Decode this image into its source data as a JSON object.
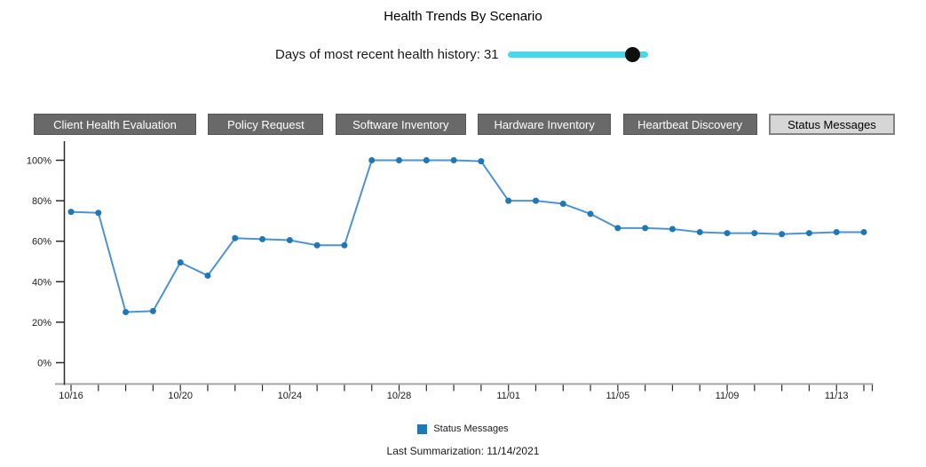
{
  "page": {
    "title": "Health Trends By Scenario",
    "background": "#ffffff"
  },
  "slider": {
    "label": "Days of most recent health history:",
    "value": "31",
    "fraction": 0.89,
    "track_color": "#48d8eb",
    "thumb_color": "#0f0f0f"
  },
  "scenario_tabs": [
    {
      "label": "Client Health Evaluation",
      "active": false
    },
    {
      "label": "Policy Request",
      "active": false
    },
    {
      "label": "Software Inventory",
      "active": false
    },
    {
      "label": "Hardware Inventory",
      "active": false
    },
    {
      "label": "Heartbeat Discovery",
      "active": false
    },
    {
      "label": "Status Messages",
      "active": true
    }
  ],
  "legend": {
    "label": "Status Messages",
    "color": "#1f77b4"
  },
  "footer": {
    "last_summarization": "Last Summarization: 11/14/2021"
  },
  "chart_data": {
    "type": "line",
    "title": "Health Trends By Scenario",
    "xlabel": "",
    "ylabel": "",
    "ylim": [
      0,
      100
    ],
    "grid": false,
    "legend_position": "bottom",
    "x": [
      "10/16",
      "10/17",
      "10/18",
      "10/19",
      "10/20",
      "10/21",
      "10/22",
      "10/23",
      "10/24",
      "10/25",
      "10/26",
      "10/27",
      "10/28",
      "10/29",
      "10/30",
      "10/31",
      "11/01",
      "11/02",
      "11/03",
      "11/04",
      "11/05",
      "11/06",
      "11/07",
      "11/08",
      "11/09",
      "11/10",
      "11/11",
      "11/12",
      "11/13",
      "11/14"
    ],
    "x_axis_labels": [
      "10/16",
      "10/20",
      "10/24",
      "10/28",
      "11/01",
      "11/05",
      "11/09",
      "11/13"
    ],
    "y_tick_labels": [
      "0%",
      "20%",
      "40%",
      "60%",
      "80%",
      "100%"
    ],
    "y_tick_values": [
      0,
      20,
      40,
      60,
      80,
      100
    ],
    "series": [
      {
        "name": "Status Messages",
        "line_color": "#4b94d1",
        "marker_color": "#1f77b4",
        "values": [
          74.5,
          74,
          25,
          25.5,
          49.5,
          43,
          61.5,
          61,
          60.5,
          58,
          58,
          100,
          100,
          100,
          100,
          99.5,
          80,
          80,
          78.5,
          73.5,
          66.5,
          66.5,
          66,
          64.5,
          64,
          64,
          63.5,
          64,
          64.5,
          64.5
        ]
      }
    ]
  }
}
